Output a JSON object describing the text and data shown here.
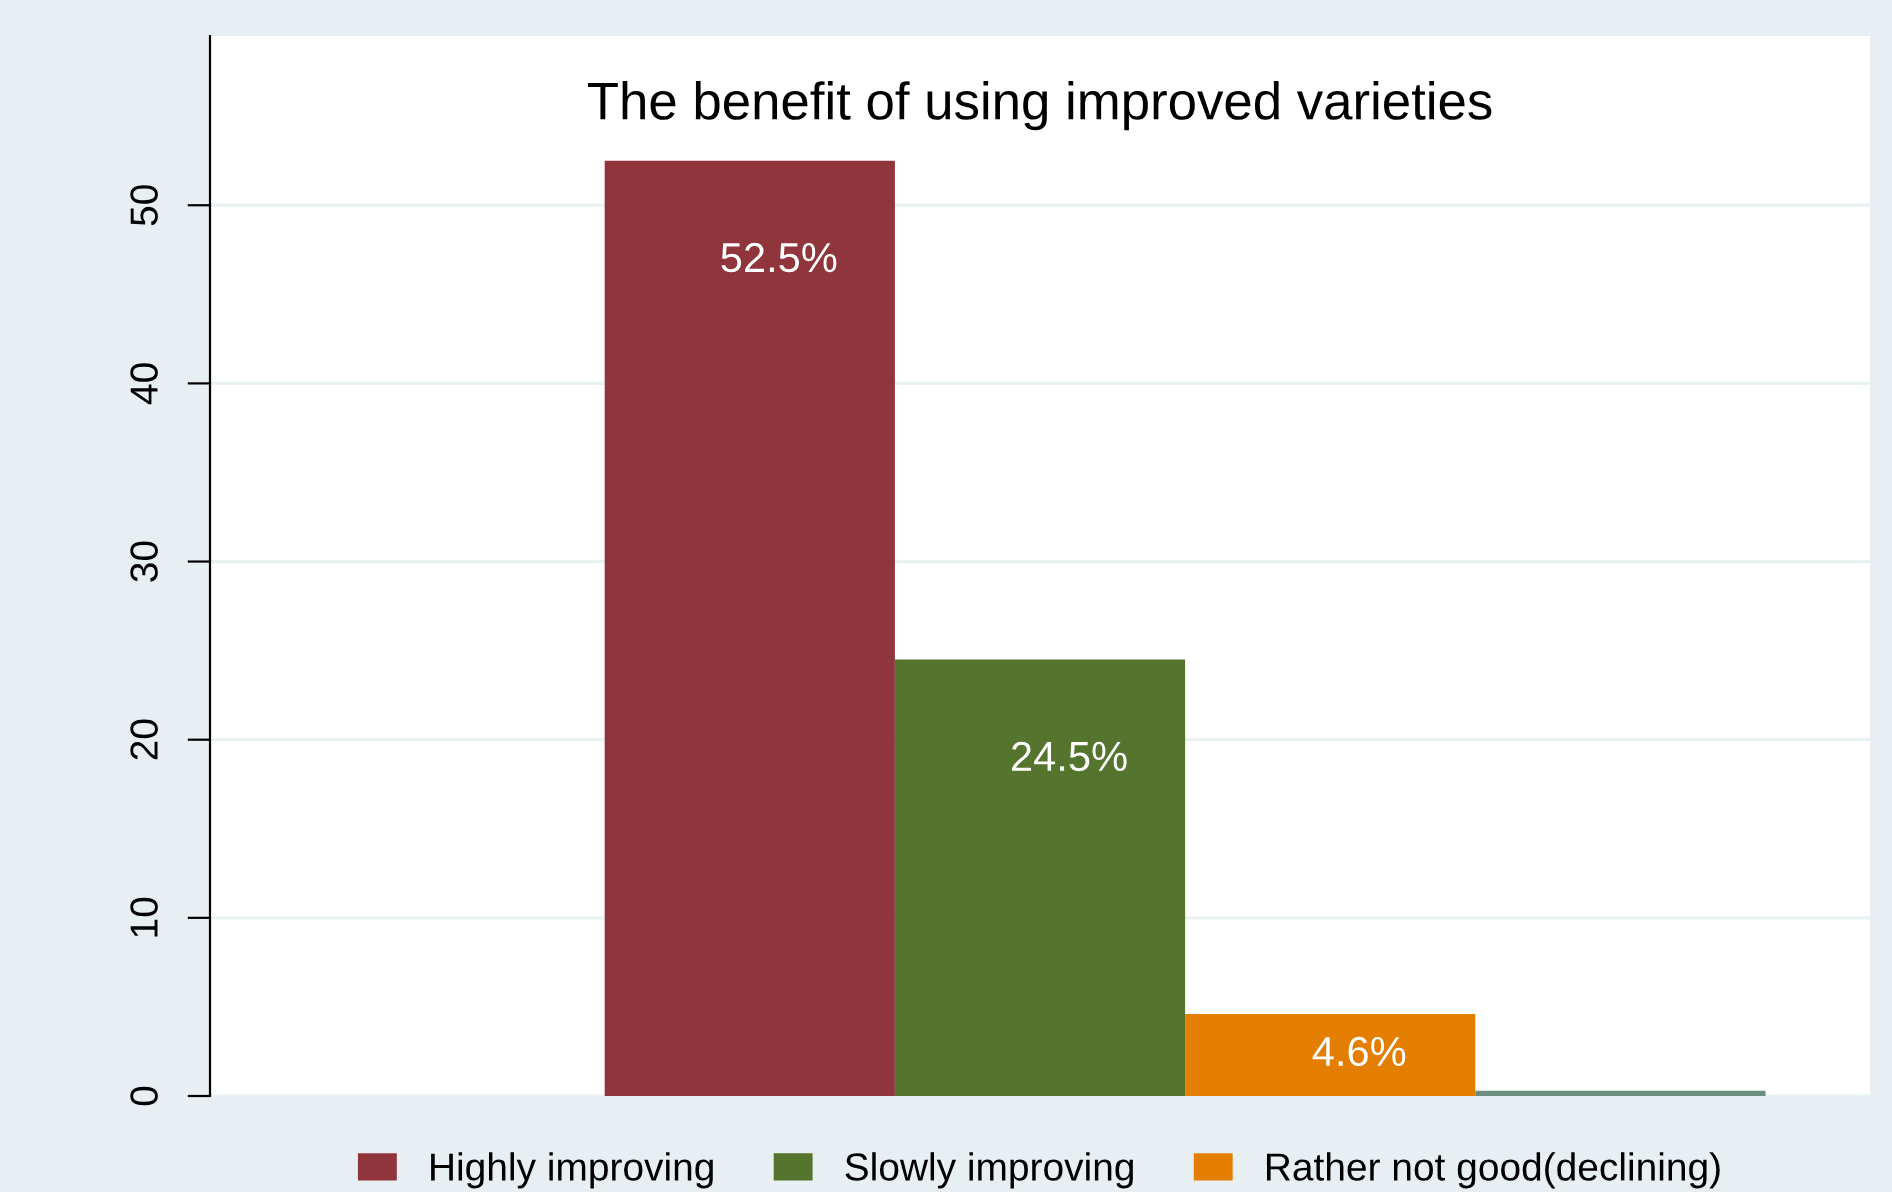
{
  "chart_data": {
    "type": "bar",
    "title": "The benefit of using improved varieties",
    "categories": [
      null
    ],
    "series": [
      {
        "name": "Highly improving",
        "color": "#90353b",
        "values": [
          52.5
        ],
        "value_labels": [
          "52.5%"
        ]
      },
      {
        "name": "Slowly improving",
        "color": "#55752f",
        "values": [
          24.5
        ],
        "value_labels": [
          "24.5%"
        ]
      },
      {
        "name": "Rather not good(declining)",
        "color": "#e37e00",
        "values": [
          4.6
        ],
        "value_labels": [
          "4.6%"
        ]
      },
      {
        "color": "#6b8e7f",
        "values": [
          0.3
        ]
      }
    ],
    "ylim": [
      0,
      59.5
    ],
    "yticks": [
      0,
      10,
      20,
      30,
      40,
      50
    ],
    "grid": "y",
    "legend": "bottom"
  }
}
